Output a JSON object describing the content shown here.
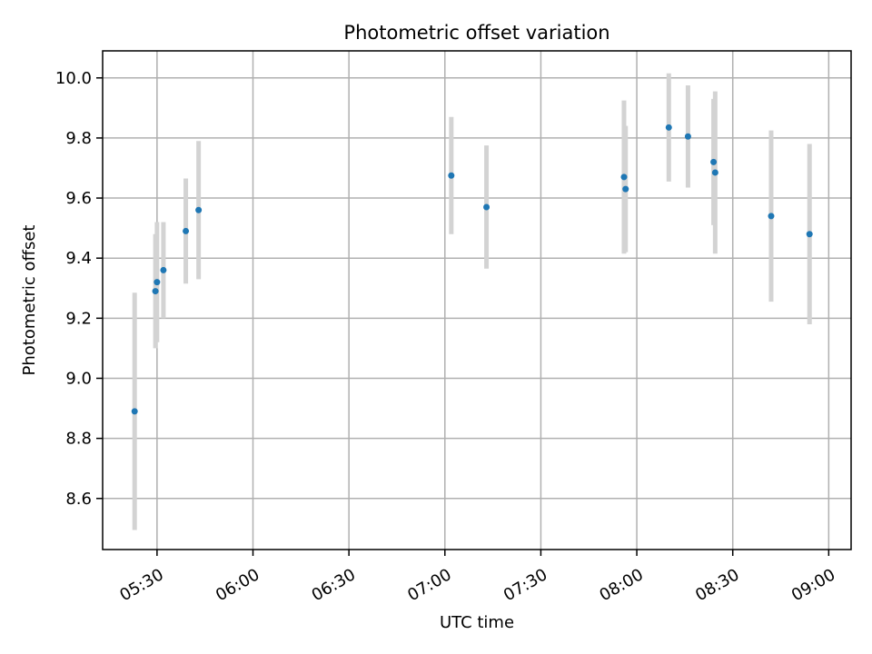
{
  "chart_data": {
    "type": "scatter",
    "title": "Photometric offset variation",
    "xlabel": "UTC time",
    "ylabel": "Photometric offset",
    "xlim": [
      "05:13",
      "09:07"
    ],
    "ylim": [
      8.43,
      10.09
    ],
    "x_ticks": [
      "05:30",
      "06:00",
      "06:30",
      "07:00",
      "07:30",
      "08:00",
      "08:30",
      "09:00"
    ],
    "y_ticks": [
      "8.6",
      "8.8",
      "9.0",
      "9.2",
      "9.4",
      "9.6",
      "9.8",
      "10.0"
    ],
    "grid": true,
    "colors": {
      "point": "#1f77b4",
      "errorbar": "#d3d3d3",
      "grid": "#b0b0b0"
    },
    "points": [
      {
        "time": "05:23",
        "y": 8.89,
        "err": 0.395
      },
      {
        "time": "05:29:30",
        "y": 9.29,
        "err": 0.19
      },
      {
        "time": "05:30",
        "y": 9.32,
        "err": 0.2
      },
      {
        "time": "05:32",
        "y": 9.36,
        "err": 0.16
      },
      {
        "time": "05:39",
        "y": 9.49,
        "err": 0.175
      },
      {
        "time": "05:43",
        "y": 9.56,
        "err": 0.23
      },
      {
        "time": "07:02",
        "y": 9.675,
        "err": 0.195
      },
      {
        "time": "07:13",
        "y": 9.57,
        "err": 0.205
      },
      {
        "time": "07:56",
        "y": 9.67,
        "err": 0.255
      },
      {
        "time": "07:56:30",
        "y": 9.63,
        "err": 0.21
      },
      {
        "time": "08:10",
        "y": 9.835,
        "err": 0.18
      },
      {
        "time": "08:16",
        "y": 9.805,
        "err": 0.17
      },
      {
        "time": "08:24",
        "y": 9.72,
        "err": 0.21
      },
      {
        "time": "08:24:30",
        "y": 9.685,
        "err": 0.27
      },
      {
        "time": "08:42",
        "y": 9.54,
        "err": 0.285
      },
      {
        "time": "08:54",
        "y": 9.48,
        "err": 0.3
      }
    ]
  }
}
